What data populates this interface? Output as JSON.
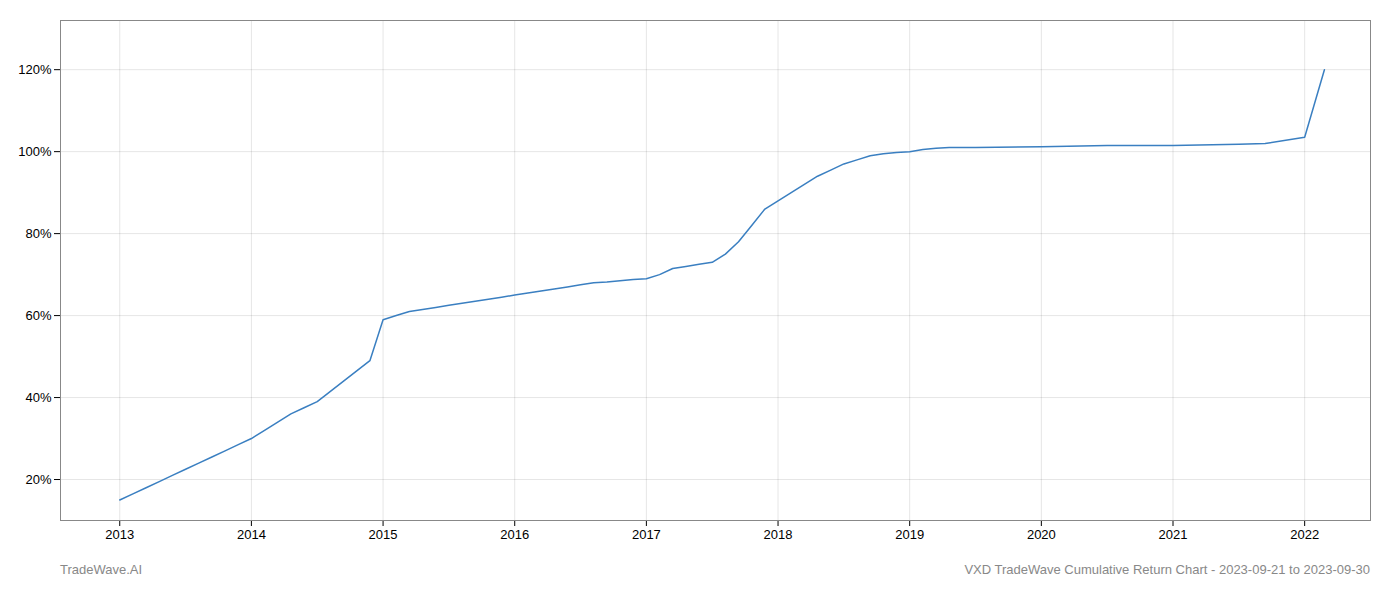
{
  "chart_data": {
    "type": "line",
    "annotations": [
      "TradeWave.AI",
      "VXD TradeWave Cumulative Return Chart - 2023-09-21 to 2023-09-30"
    ],
    "x": [
      2013.0,
      2013.1,
      2013.2,
      2013.3,
      2013.4,
      2013.5,
      2013.6,
      2013.7,
      2013.8,
      2013.9,
      2014.0,
      2014.1,
      2014.2,
      2014.3,
      2014.4,
      2014.5,
      2014.6,
      2014.7,
      2014.8,
      2014.9,
      2015.0,
      2015.1,
      2015.2,
      2015.3,
      2015.4,
      2015.5,
      2015.6,
      2015.7,
      2015.8,
      2015.9,
      2016.0,
      2016.1,
      2016.2,
      2016.3,
      2016.4,
      2016.5,
      2016.6,
      2016.7,
      2016.8,
      2016.9,
      2017.0,
      2017.1,
      2017.2,
      2017.3,
      2017.4,
      2017.5,
      2017.6,
      2017.7,
      2017.8,
      2017.9,
      2018.0,
      2018.1,
      2018.2,
      2018.3,
      2018.4,
      2018.5,
      2018.6,
      2018.7,
      2018.8,
      2018.9,
      2019.0,
      2019.1,
      2019.2,
      2019.3,
      2019.4,
      2019.5,
      2020.0,
      2020.5,
      2021.0,
      2021.5,
      2021.7,
      2022.0,
      2022.15
    ],
    "values": [
      15.0,
      16.5,
      18.0,
      19.5,
      21.0,
      22.5,
      24.0,
      25.5,
      27.0,
      28.5,
      30.0,
      32.0,
      34.0,
      36.0,
      37.5,
      39.0,
      41.5,
      44.0,
      46.5,
      49.0,
      59.0,
      60.0,
      61.0,
      61.5,
      62.0,
      62.5,
      63.0,
      63.5,
      64.0,
      64.5,
      65.0,
      65.5,
      66.0,
      66.5,
      67.0,
      67.5,
      68.0,
      68.2,
      68.5,
      68.8,
      69.0,
      70.0,
      71.5,
      72.0,
      72.5,
      73.0,
      75.0,
      78.0,
      82.0,
      86.0,
      88.0,
      90.0,
      92.0,
      94.0,
      95.5,
      97.0,
      98.0,
      99.0,
      99.5,
      99.8,
      100.0,
      100.5,
      100.8,
      101.0,
      101.0,
      101.0,
      101.2,
      101.5,
      101.5,
      101.8,
      102.0,
      103.5,
      120.0
    ],
    "color": "#3a7fc1",
    "xlim": [
      2012.55,
      2022.5
    ],
    "xticks": [
      2013,
      2014,
      2015,
      2016,
      2017,
      2018,
      2019,
      2020,
      2021,
      2022
    ],
    "ylim": [
      10,
      132
    ],
    "yticks": [
      {
        "value": 20,
        "label": "20%"
      },
      {
        "value": 40,
        "label": "40%"
      },
      {
        "value": 60,
        "label": "60%"
      },
      {
        "value": 80,
        "label": "80%"
      },
      {
        "value": 100,
        "label": "100%"
      },
      {
        "value": 120,
        "label": "120%"
      }
    ],
    "grid": true
  }
}
